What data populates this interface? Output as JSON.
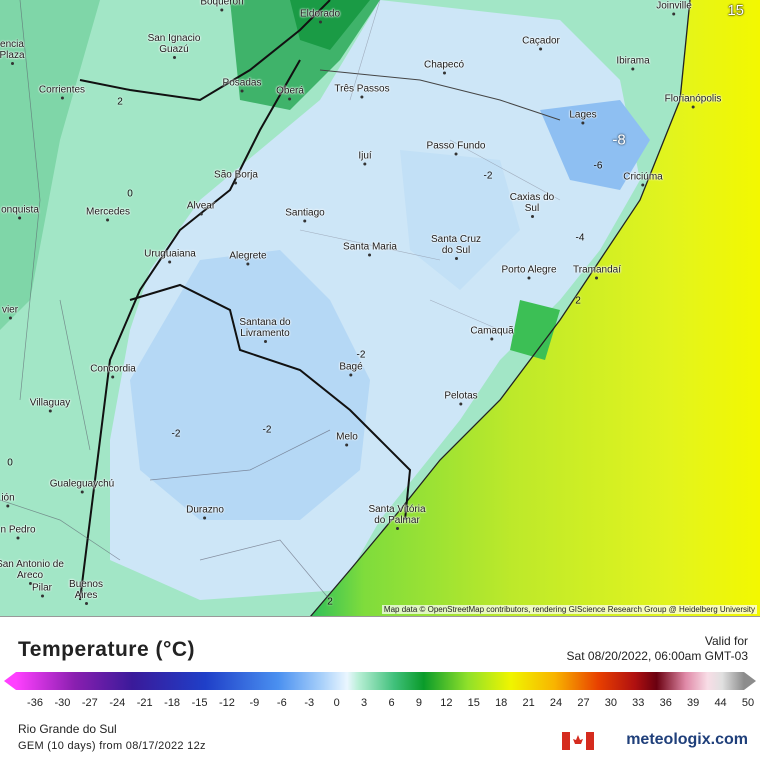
{
  "map": {
    "cities": [
      "Boqueron",
      "Eldorado",
      "San Ignacio Guazú",
      "Caçador",
      "Chapecó",
      "Ibirama",
      "Joinville",
      "Florianópolis",
      "Posadas",
      "Oberá",
      "Três Passos",
      "Corrientes",
      "Lages",
      "Passo Fundo",
      "Ijuí",
      "Criciúma",
      "São Borja",
      "Caxias do Sul",
      "Alvear",
      "Mercedes",
      "Santiago",
      "Santa Maria",
      "Santa Cruz do Sul",
      "Uruguaiana",
      "Alegrete",
      "Porto Alegre",
      "Tramandaí",
      "Santana do Livramento",
      "Camaquã",
      "Concordia",
      "Bagé",
      "Villaguay",
      "Pelotas",
      "Melo",
      "Gualeguaychú",
      "Durazno",
      "Santa Vitória do Palmar",
      "San Antonio de Areco",
      "Pilar",
      "Buenos Aires",
      "encia Plaza",
      "onquista",
      "vier",
      "ión",
      "n Pedro"
    ],
    "contour_labels": [
      2,
      0,
      -2,
      -8,
      -6,
      -4,
      2,
      -2,
      -2,
      -2,
      0,
      2
    ],
    "corner_label": "15",
    "attribution": "Map data © OpenStreetMap contributors, rendering GIScience Research Group @ Heidelberg University"
  },
  "legend": {
    "title": "Temperature (°C)",
    "ticks": [
      -36,
      -30,
      -27,
      -24,
      -21,
      -18,
      -15,
      -12,
      -9,
      -6,
      -3,
      0,
      3,
      6,
      9,
      12,
      15,
      18,
      21,
      24,
      27,
      30,
      33,
      36,
      39,
      44,
      50
    ]
  },
  "valid": {
    "label": "Valid for",
    "time": "Sat 08/20/2022, 06:00am GMT-03"
  },
  "footer": {
    "region": "Rio Grande do Sul",
    "model": "GEM (10 days) from 08/17/2022 12z",
    "brand": "meteologix.com"
  }
}
